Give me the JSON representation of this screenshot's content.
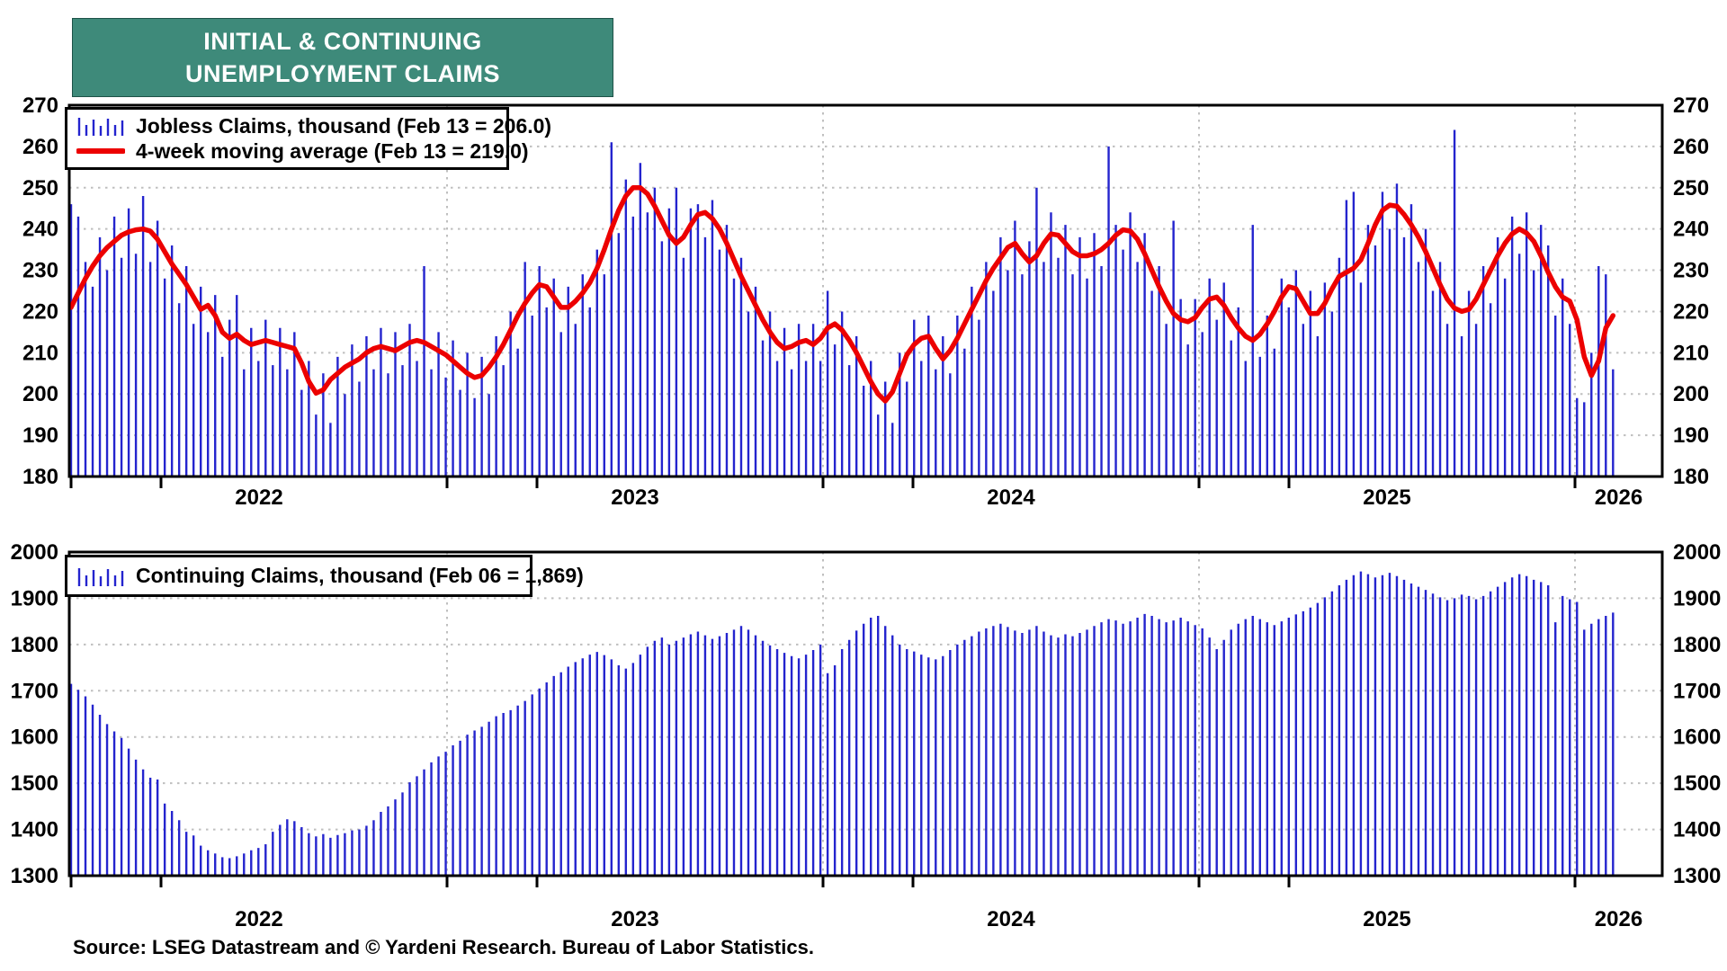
{
  "title": {
    "line1": "INITIAL & CONTINUING",
    "line2": "UNEMPLOYMENT CLAIMS"
  },
  "source_note": "Source: LSEG Datastream and © Yardeni Research. Bureau of Labor Statistics.",
  "colors": {
    "bar_blue": "#2424CE",
    "ma_red": "#EC0000",
    "title_bg": "#3E8A7A",
    "title_text": "#FFFFFF",
    "grid_gray": "#BFBFBF",
    "frame_black": "#000000"
  },
  "chart_data": [
    {
      "type": "bar",
      "title": "Initial jobless claims with 4-week moving average",
      "x_start": "2022-W01",
      "x_frequency": "weekly",
      "x_year_labels": [
        "2022",
        "2023",
        "2024",
        "2025",
        "2026"
      ],
      "ylim": [
        180,
        270
      ],
      "yticks": [
        180,
        190,
        200,
        210,
        220,
        230,
        240,
        250,
        260,
        270
      ],
      "grid": "dotted",
      "legend_position": "top-left",
      "legend": [
        {
          "icon": "blue-bars",
          "label": "Jobless Claims, thousand (Feb 13 = 206.0)"
        },
        {
          "icon": "red-line",
          "label": "4-week moving average (Feb 13 = 219.0)"
        }
      ],
      "series": [
        {
          "name": "Jobless Claims",
          "type": "bar",
          "last_date": "Feb 13",
          "last_value": 206.0,
          "values": [
            246,
            243,
            232,
            226,
            238,
            230,
            243,
            233,
            245,
            234,
            248,
            232,
            242,
            228,
            236,
            222,
            231,
            217,
            226,
            215,
            224,
            209,
            218,
            224,
            206,
            216,
            208,
            218,
            207,
            216,
            206,
            215,
            201,
            208,
            195,
            205,
            193,
            209,
            200,
            212,
            203,
            214,
            206,
            216,
            205,
            215,
            207,
            217,
            208,
            231,
            206,
            215,
            204,
            213,
            201,
            210,
            199,
            209,
            200,
            214,
            207,
            220,
            211,
            232,
            219,
            231,
            221,
            228,
            215,
            226,
            217,
            229,
            221,
            235,
            229,
            261,
            239,
            252,
            243,
            256,
            244,
            250,
            237,
            245,
            250,
            233,
            245,
            246,
            238,
            247,
            235,
            241,
            228,
            233,
            220,
            226,
            213,
            220,
            208,
            216,
            206,
            217,
            208,
            217,
            208,
            225,
            212,
            220,
            207,
            214,
            202,
            208,
            195,
            203,
            193,
            210,
            203,
            218,
            208,
            219,
            206,
            214,
            205,
            219,
            211,
            226,
            218,
            232,
            225,
            238,
            230,
            242,
            229,
            237,
            250,
            232,
            244,
            233,
            241,
            229,
            238,
            228,
            239,
            231,
            260,
            241,
            235,
            244,
            232,
            239,
            225,
            231,
            217,
            242,
            223,
            212,
            223,
            215,
            228,
            218,
            227,
            213,
            221,
            208,
            241,
            209,
            219,
            211,
            228,
            221,
            230,
            217,
            225,
            214,
            227,
            220,
            233,
            247,
            249,
            227,
            241,
            236,
            249,
            240,
            251,
            238,
            246,
            232,
            240,
            225,
            232,
            217,
            264,
            214,
            225,
            217,
            231,
            222,
            238,
            228,
            243,
            234,
            244,
            230,
            241,
            236,
            219,
            228,
            217,
            199,
            198,
            210,
            231,
            229,
            206
          ]
        },
        {
          "name": "4-week moving average",
          "type": "line",
          "last_date": "Feb 13",
          "last_value": 219.0,
          "values": [
            221,
            224.5,
            228,
            231,
            233.5,
            235.5,
            237,
            238.5,
            239.3,
            239.8,
            240,
            239.5,
            237.5,
            234.5,
            231.5,
            229,
            226.5,
            223.5,
            220.5,
            221.5,
            219,
            215,
            213.5,
            214.5,
            213,
            212,
            212.5,
            213,
            212.5,
            212,
            211.5,
            211,
            207.5,
            203,
            200.2,
            201,
            203.5,
            205,
            206.5,
            207.5,
            208.5,
            210,
            211,
            211.5,
            211,
            210.5,
            211.5,
            212.5,
            213,
            212.5,
            211.5,
            210.5,
            209.5,
            208,
            206.5,
            205,
            204,
            204.5,
            206.5,
            209,
            212,
            215.5,
            219,
            222,
            224.5,
            226.5,
            226,
            223.5,
            221,
            221,
            222.5,
            224.5,
            227,
            230.5,
            235,
            240,
            244.5,
            248,
            250,
            250,
            248.5,
            245.5,
            242,
            238.5,
            236.5,
            238,
            241,
            243.5,
            244,
            242.5,
            240,
            236.5,
            232.5,
            228.5,
            225,
            221.5,
            218,
            215,
            212.5,
            211,
            211.5,
            212.5,
            213,
            212,
            213.5,
            216,
            217,
            215.5,
            213,
            210,
            206.5,
            203,
            200,
            198.3,
            200.5,
            205,
            209.5,
            212,
            213.5,
            214,
            211,
            208.5,
            210.5,
            213.5,
            217,
            220.5,
            224,
            227.5,
            230.5,
            233,
            235.5,
            236.5,
            234,
            232,
            233.5,
            236.5,
            238.8,
            238.5,
            236.5,
            234.5,
            233.5,
            233.5,
            234,
            235,
            236.5,
            238.5,
            239.8,
            239.5,
            237.5,
            234,
            230,
            226,
            222.5,
            219.5,
            218,
            217.5,
            218.5,
            221,
            223,
            223.5,
            221.5,
            218.5,
            216,
            214,
            213,
            214.5,
            217,
            220,
            223.5,
            226,
            225.5,
            222.5,
            219.5,
            219.5,
            222,
            225.5,
            228.5,
            229.5,
            230.5,
            232.5,
            236.5,
            241,
            244.5,
            245.8,
            245.5,
            243.5,
            241,
            238,
            234.5,
            230.5,
            226.5,
            223,
            220.8,
            220,
            220.5,
            223,
            226.5,
            230,
            233.5,
            236.5,
            238.8,
            240,
            239,
            237,
            233.5,
            229.5,
            226,
            223.5,
            222.5,
            218,
            209,
            204.5,
            208,
            216,
            219
          ]
        }
      ]
    },
    {
      "type": "bar",
      "title": "Continuing claims",
      "x_start": "2022-W01",
      "x_frequency": "weekly",
      "x_year_labels": [
        "2022",
        "2023",
        "2024",
        "2025",
        "2026"
      ],
      "ylim": [
        1300,
        2000
      ],
      "yticks": [
        1300,
        1400,
        1500,
        1600,
        1700,
        1800,
        1900,
        2000
      ],
      "grid": "dotted",
      "legend_position": "top-left",
      "legend": [
        {
          "icon": "blue-bars",
          "label": "Continuing Claims, thousand (Feb 06 = 1,869)"
        }
      ],
      "series": [
        {
          "name": "Continuing Claims",
          "type": "bar",
          "last_date": "Feb 06",
          "last_value": 1869,
          "values": [
            1715,
            1702,
            1688,
            1670,
            1648,
            1628,
            1612,
            1598,
            1575,
            1551,
            1530,
            1512,
            1508,
            1456,
            1440,
            1420,
            1395,
            1387,
            1365,
            1355,
            1348,
            1340,
            1338,
            1342,
            1348,
            1355,
            1360,
            1368,
            1395,
            1410,
            1422,
            1418,
            1405,
            1392,
            1385,
            1390,
            1382,
            1388,
            1392,
            1398,
            1400,
            1408,
            1420,
            1438,
            1450,
            1465,
            1480,
            1502,
            1515,
            1530,
            1545,
            1558,
            1568,
            1582,
            1592,
            1605,
            1614,
            1622,
            1633,
            1645,
            1652,
            1658,
            1668,
            1678,
            1692,
            1705,
            1718,
            1732,
            1740,
            1752,
            1762,
            1770,
            1778,
            1784,
            1777,
            1768,
            1755,
            1748,
            1760,
            1778,
            1795,
            1808,
            1815,
            1800,
            1808,
            1815,
            1822,
            1828,
            1820,
            1812,
            1818,
            1825,
            1832,
            1840,
            1832,
            1820,
            1808,
            1798,
            1790,
            1782,
            1775,
            1770,
            1778,
            1788,
            1800,
            1738,
            1755,
            1790,
            1810,
            1830,
            1845,
            1858,
            1862,
            1840,
            1820,
            1800,
            1790,
            1785,
            1778,
            1772,
            1768,
            1775,
            1788,
            1800,
            1810,
            1818,
            1828,
            1835,
            1840,
            1845,
            1838,
            1830,
            1825,
            1832,
            1840,
            1828,
            1820,
            1815,
            1822,
            1818,
            1825,
            1832,
            1840,
            1848,
            1855,
            1852,
            1845,
            1850,
            1858,
            1866,
            1862,
            1855,
            1848,
            1852,
            1858,
            1850,
            1842,
            1835,
            1815,
            1790,
            1810,
            1832,
            1845,
            1855,
            1862,
            1855,
            1848,
            1842,
            1850,
            1858,
            1865,
            1872,
            1880,
            1890,
            1902,
            1915,
            1928,
            1940,
            1950,
            1958,
            1952,
            1945,
            1950,
            1955,
            1948,
            1940,
            1932,
            1925,
            1918,
            1910,
            1902,
            1896,
            1900,
            1908,
            1905,
            1898,
            1905,
            1915,
            1925,
            1935,
            1945,
            1952,
            1948,
            1940,
            1935,
            1928,
            1848,
            1905,
            1898,
            1892,
            1832,
            1845,
            1855,
            1862,
            1869
          ]
        }
      ]
    }
  ]
}
